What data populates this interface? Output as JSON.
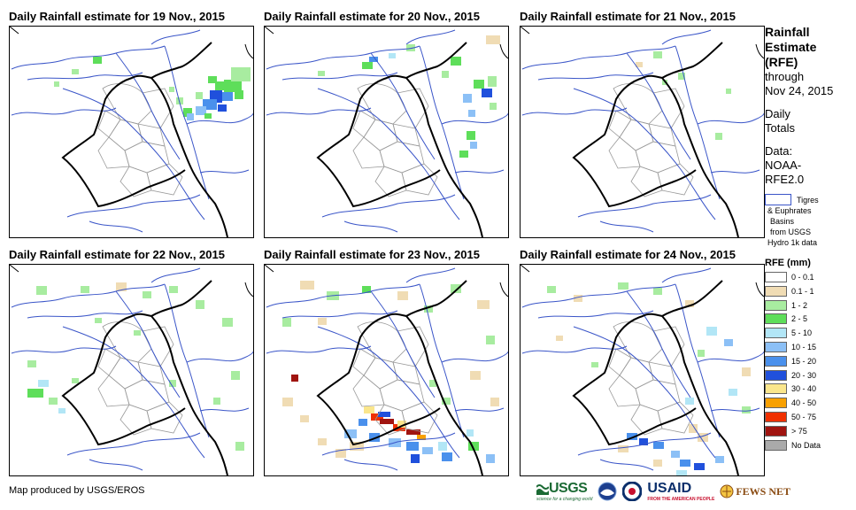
{
  "panels": [
    {
      "title": "Daily Rainfall estimate for 19 Nov., 2015"
    },
    {
      "title": "Daily Rainfall estimate for 20 Nov., 2015"
    },
    {
      "title": "Daily Rainfall estimate for 21 Nov., 2015"
    },
    {
      "title": "Daily Rainfall estimate for 22 Nov., 2015"
    },
    {
      "title": "Daily Rainfall estimate for 23 Nov., 2015"
    },
    {
      "title": "Daily Rainfall estimate for 24 Nov., 2015"
    }
  ],
  "sidebar": {
    "title_lines": [
      "Rainfall",
      "Estimate",
      "(RFE)"
    ],
    "through": "through",
    "date": "Nov 24, 2015",
    "daily": "Daily",
    "totals": "Totals",
    "data_label": "Data:",
    "data_source_1": "NOAA-",
    "data_source_2": "RFE2.0",
    "basin_line_1": "Tigres",
    "basin_line_2": "& Euphrates",
    "basin_line_3": "Basins",
    "basin_line_4": "from USGS",
    "basin_line_5": "Hydro 1k data"
  },
  "legend": {
    "title": "RFE (mm)",
    "items": [
      {
        "label": "0 - 0.1",
        "color": "#ffffff"
      },
      {
        "label": "0.1 - 1",
        "color": "#f0dcb4"
      },
      {
        "label": "1 - 2",
        "color": "#a8eca0"
      },
      {
        "label": "2 - 5",
        "color": "#5ede5a"
      },
      {
        "label": "5 - 10",
        "color": "#b2e6f6"
      },
      {
        "label": "10 - 15",
        "color": "#8cc0f6"
      },
      {
        "label": "15 - 20",
        "color": "#4a90ec"
      },
      {
        "label": "20 - 30",
        "color": "#2050dc"
      },
      {
        "label": "30 - 40",
        "color": "#fae68c"
      },
      {
        "label": "40 - 50",
        "color": "#f8a000"
      },
      {
        "label": "50 - 75",
        "color": "#f03000"
      },
      {
        "label": "> 75",
        "color": "#a01410"
      },
      {
        "label": "No Data",
        "color": "#aaaaaa"
      }
    ]
  },
  "footer": {
    "credit": "Map produced by USGS/EROS",
    "logo_usgs": "USGS",
    "logo_usgs_tagline": "science for a changing world",
    "logo_usaid": "USAID",
    "logo_usaid_tagline": "FROM THE AMERICAN PEOPLE",
    "logo_fewsnet": "FEWS NET"
  },
  "colors": {
    "border": "#000000",
    "rivers": "#3a55c8",
    "provinces": "#999999"
  }
}
